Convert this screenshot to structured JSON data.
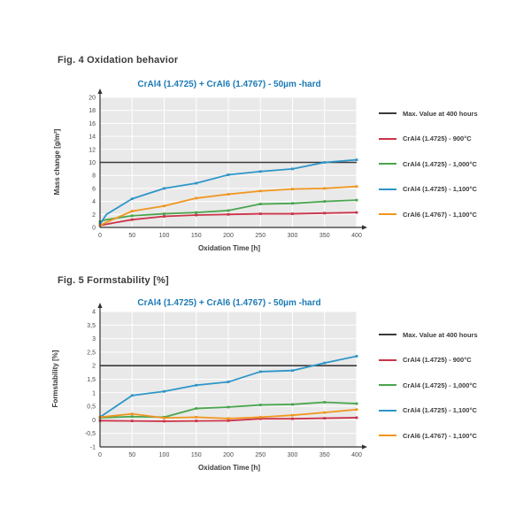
{
  "figures": [
    {
      "caption": "Fig. 4 Oxidation behavior",
      "title": "CrAl4 (1.4725) + CrAl6 (1.4767) - 50µm -hard",
      "xlabel": "Oxidation Time [h]",
      "ylabel": "Mass change [g/m²]"
    },
    {
      "caption": "Fig. 5 Formstability [%]",
      "title": "CrAl4 (1.4725) + CrAl6 (1.4767) - 50µm -hard",
      "xlabel": "Oxidation Time [h]",
      "ylabel": "Formstability [%]"
    }
  ],
  "colors": {
    "title_blue": "#1b7ab5",
    "plot_background": "#e9e9e9",
    "gridline": "#ffffff",
    "axis": "#333333",
    "tick_text": "#4a4a4a"
  },
  "chart_data": [
    {
      "type": "line",
      "title": "CrAl4 (1.4725) + CrAl6 (1.4767) - 50µm -hard",
      "xlabel": "Oxidation Time [h]",
      "ylabel": "Mass change [g/m²]",
      "x": [
        0,
        10,
        50,
        100,
        150,
        200,
        250,
        300,
        350,
        400
      ],
      "x_tick_labels": [
        "0",
        "50",
        "100",
        "150",
        "200",
        "250",
        "300",
        "350",
        "400"
      ],
      "x_tick_values": [
        0,
        50,
        100,
        150,
        200,
        250,
        300,
        350,
        400
      ],
      "xlim": [
        0,
        400
      ],
      "ylim": [
        0,
        20
      ],
      "y_tick_step": 2,
      "y_tick_labels": [
        "0",
        "2",
        "4",
        "6",
        "8",
        "10",
        "12",
        "14",
        "16",
        "18",
        "20"
      ],
      "grid": true,
      "legend_position": "right",
      "max_line": {
        "label": "Max. Value at 400 hours",
        "value": 10,
        "color": "#3a3a3a"
      },
      "series": [
        {
          "name": "CrAl4 (1.4725) - 900°C",
          "color": "#cb3349",
          "values": [
            0.3,
            0.5,
            1.2,
            1.7,
            1.9,
            2.0,
            2.1,
            2.1,
            2.2,
            2.3
          ]
        },
        {
          "name": "CrAl4 (1.4725) - 1,000°C",
          "color": "#4aa54e",
          "values": [
            0.9,
            1.2,
            1.8,
            2.1,
            2.3,
            2.6,
            3.6,
            3.7,
            4.0,
            4.2
          ]
        },
        {
          "name": "CrAl4 (1.4725) - 1,100°C",
          "color": "#2d96c8",
          "values": [
            0.5,
            2.0,
            4.4,
            6.0,
            6.8,
            8.1,
            8.6,
            9.0,
            10.0,
            10.4
          ]
        },
        {
          "name": "CrAl6 (1.4767) - 1,100°C",
          "color": "#f0961e",
          "values": [
            0.3,
            0.8,
            2.5,
            3.3,
            4.5,
            5.1,
            5.6,
            5.9,
            6.0,
            6.3
          ]
        }
      ]
    },
    {
      "type": "line",
      "title": "CrAl4 (1.4725) + CrAl6 (1.4767) - 50µm -hard",
      "xlabel": "Oxidation Time [h]",
      "ylabel": "Formstability [%]",
      "x": [
        0,
        50,
        100,
        150,
        200,
        250,
        300,
        350,
        400
      ],
      "x_tick_labels": [
        "0",
        "50",
        "100",
        "150",
        "200",
        "250",
        "300",
        "350",
        "400"
      ],
      "x_tick_values": [
        0,
        50,
        100,
        150,
        200,
        250,
        300,
        350,
        400
      ],
      "xlim": [
        0,
        400
      ],
      "ylim": [
        -1,
        4
      ],
      "y_tick_step": 0.5,
      "y_tick_labels": [
        "-1",
        "-0,5",
        "0",
        "0,5",
        "1",
        "1,5",
        "2",
        "2,5",
        "3",
        "3,5",
        "4"
      ],
      "grid": true,
      "legend_position": "right",
      "max_line": {
        "label": "Max. Value at 400 hours",
        "value": 2,
        "color": "#3a3a3a"
      },
      "series": [
        {
          "name": "CrAl4 (1.4725) - 900°C",
          "color": "#cb3349",
          "values": [
            -0.03,
            -0.04,
            -0.05,
            -0.04,
            -0.03,
            0.04,
            0.04,
            0.06,
            0.08
          ]
        },
        {
          "name": "CrAl4 (1.4725) - 1,000°C",
          "color": "#4aa54e",
          "values": [
            0.08,
            0.12,
            0.1,
            0.42,
            0.47,
            0.55,
            0.57,
            0.65,
            0.6
          ]
        },
        {
          "name": "CrAl4 (1.4725) - 1,100°C",
          "color": "#2d96c8",
          "values": [
            0.1,
            0.9,
            1.05,
            1.28,
            1.4,
            1.78,
            1.82,
            2.1,
            2.35
          ]
        },
        {
          "name": "CrAl6 (1.4767) - 1,100°C",
          "color": "#f0961e",
          "values": [
            0.1,
            0.22,
            0.07,
            0.1,
            0.05,
            0.1,
            0.17,
            0.27,
            0.38
          ]
        }
      ]
    }
  ]
}
